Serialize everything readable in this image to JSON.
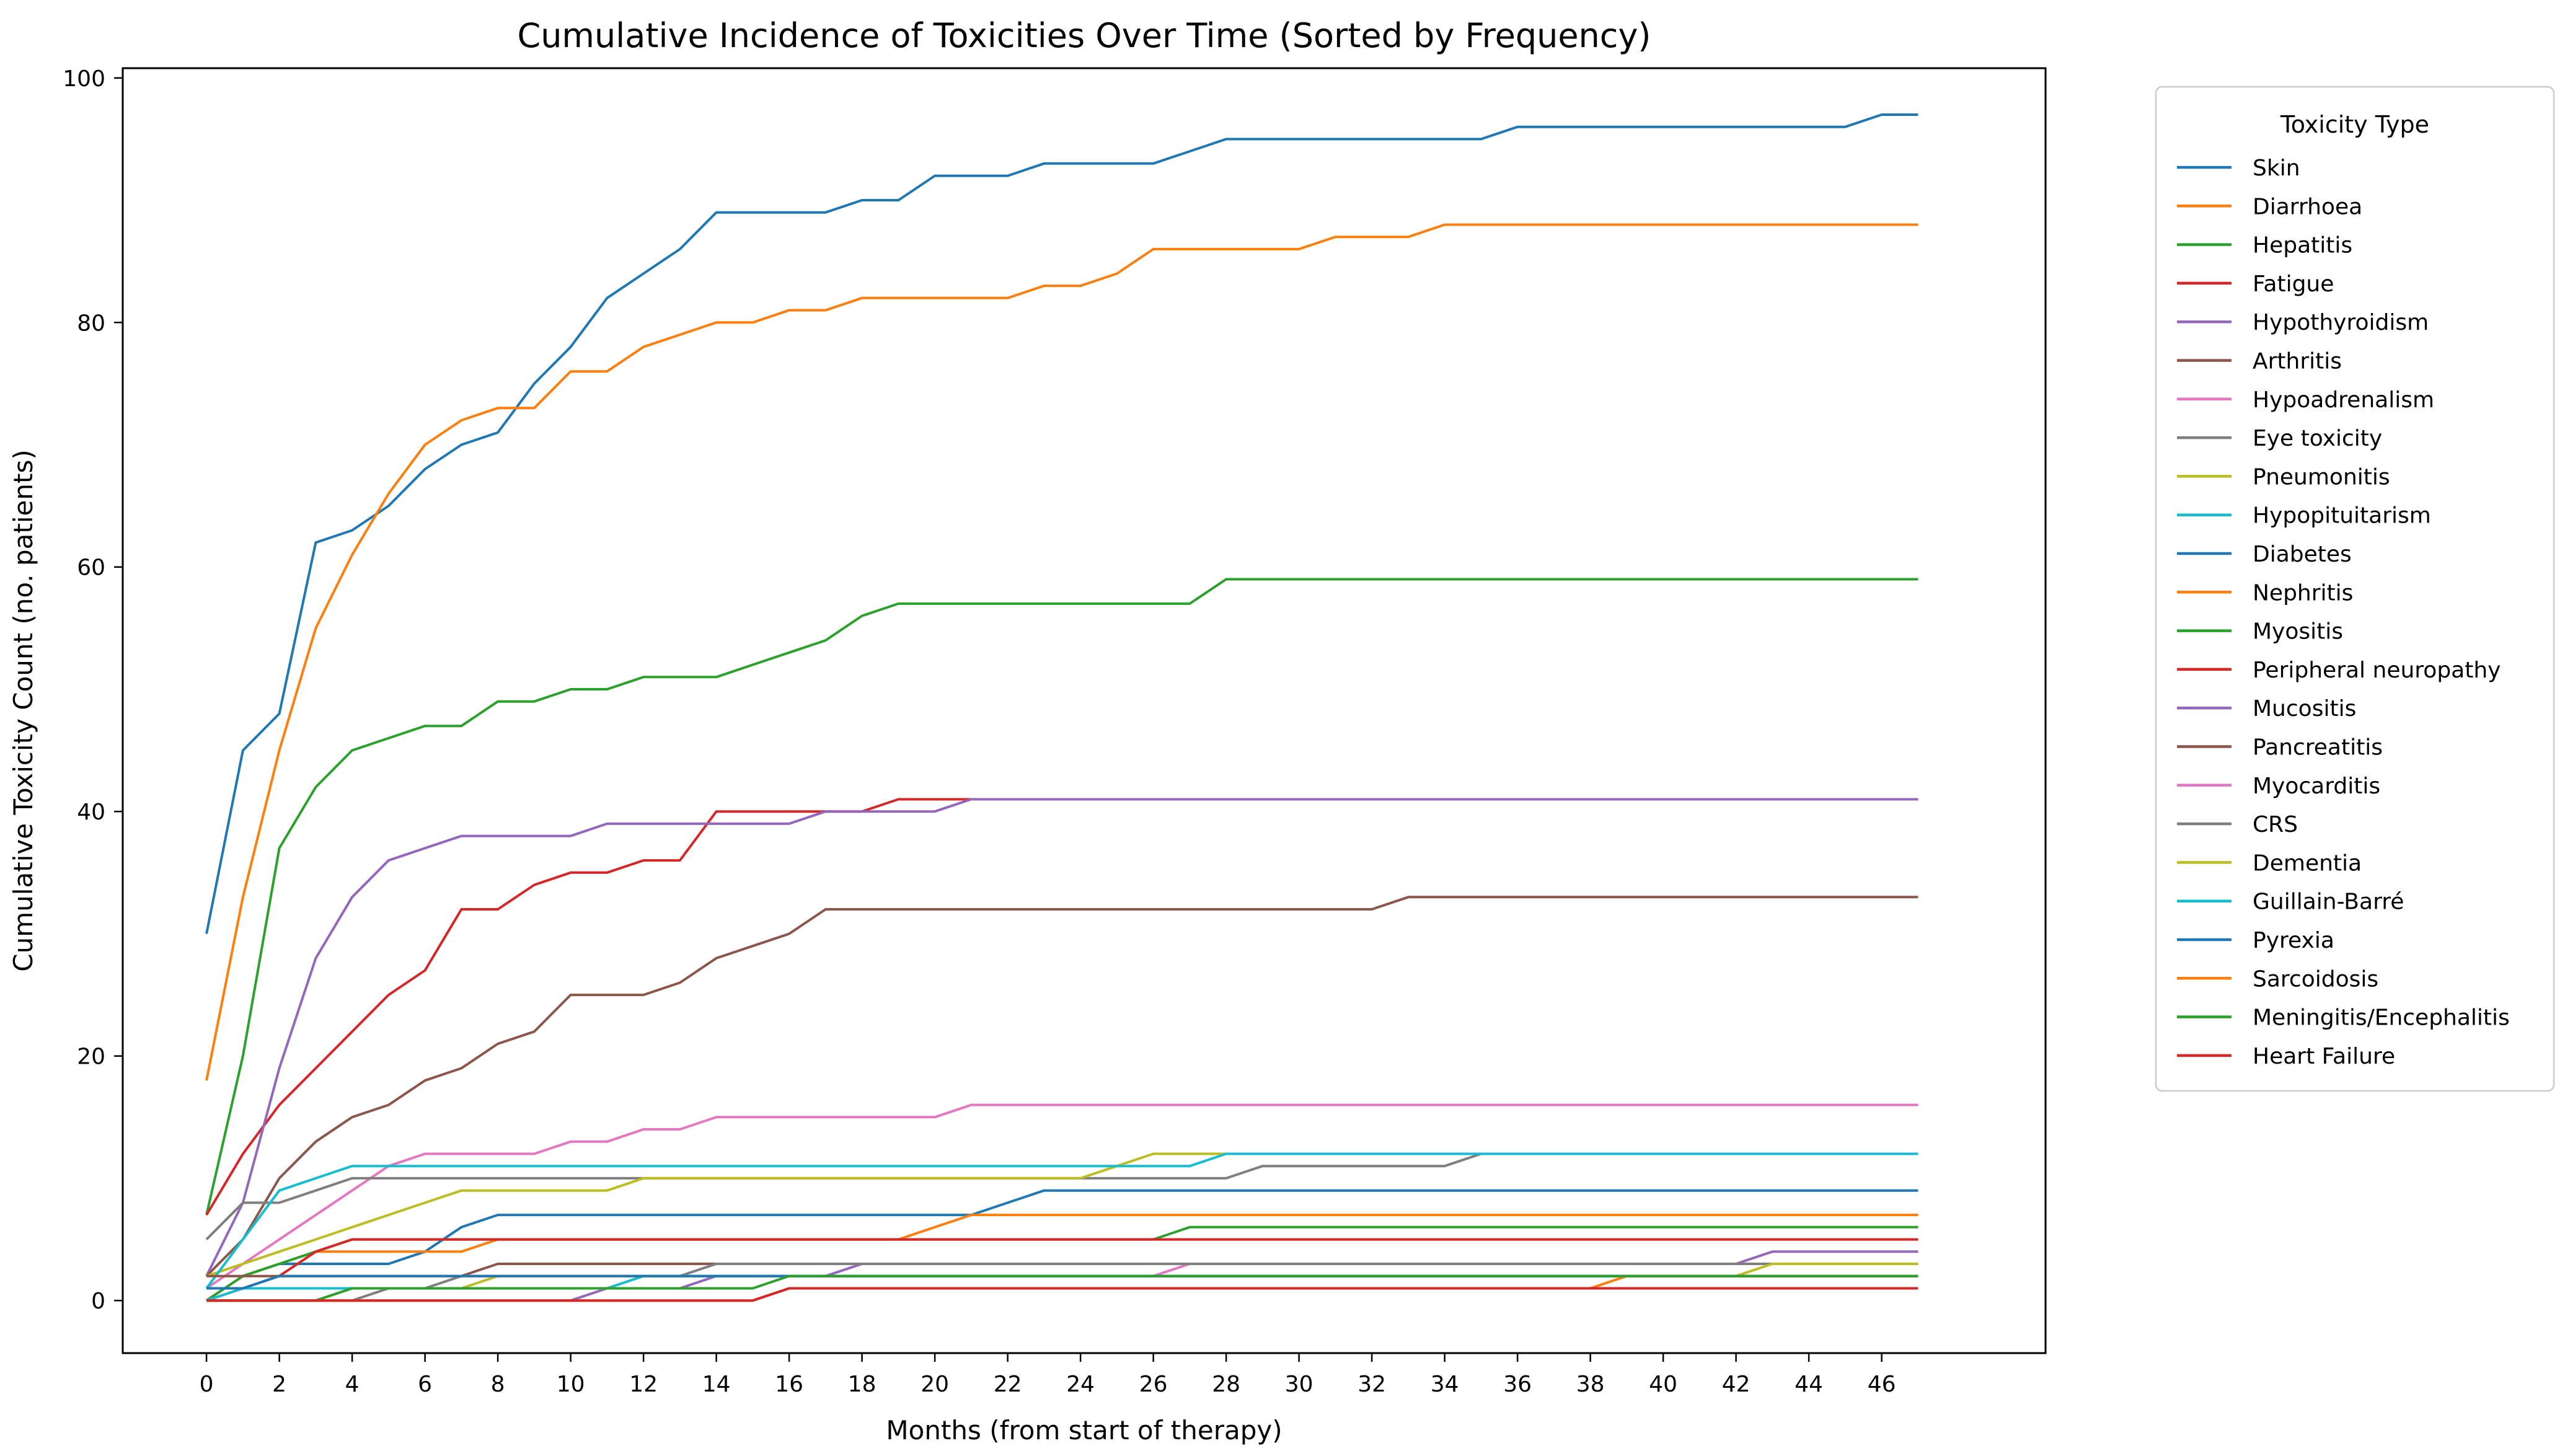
{
  "figure": {
    "background": "#ffffff",
    "frame_color": "#000000",
    "legend_border_color": "#cccccc"
  },
  "chart_data": {
    "type": "line",
    "title": "Cumulative Incidence of Toxicities Over Time (Sorted by Frequency)",
    "xlabel": "Months (from start of therapy)",
    "ylabel": "Cumulative Toxicity Count (no. patients)",
    "legend_title": "Toxicity Type",
    "legend_position": "right-outside",
    "grid": false,
    "xlim": [
      -2.3,
      50.5
    ],
    "ylim": [
      -4.3,
      100.8
    ],
    "x_ticks": [
      0,
      2,
      4,
      6,
      8,
      10,
      12,
      14,
      16,
      18,
      20,
      22,
      24,
      26,
      28,
      30,
      32,
      34,
      36,
      38,
      40,
      42,
      44,
      46
    ],
    "y_ticks": [
      0,
      20,
      40,
      60,
      80,
      100
    ],
    "x": [
      0,
      1,
      2,
      3,
      4,
      5,
      6,
      7,
      8,
      9,
      10,
      11,
      12,
      13,
      14,
      15,
      16,
      17,
      18,
      19,
      20,
      21,
      22,
      23,
      24,
      25,
      26,
      27,
      28,
      29,
      30,
      31,
      32,
      33,
      34,
      35,
      36,
      37,
      38,
      39,
      40,
      41,
      42,
      43,
      44,
      45,
      46,
      47
    ],
    "series": [
      {
        "name": "Skin",
        "color": "#1f77b4",
        "values": [
          30,
          45,
          48,
          62,
          63,
          65,
          68,
          70,
          71,
          75,
          78,
          82,
          84,
          86,
          89,
          89,
          89,
          89,
          90,
          90,
          92,
          92,
          92,
          93,
          93,
          93,
          93,
          94,
          95,
          95,
          95,
          95,
          95,
          95,
          95,
          95,
          96,
          96,
          96,
          96,
          96,
          96,
          96,
          96,
          96,
          96,
          97,
          97
        ]
      },
      {
        "name": "Diarrhoea",
        "color": "#ff7f0e",
        "values": [
          18,
          33,
          45,
          55,
          61,
          66,
          70,
          72,
          73,
          73,
          76,
          76,
          78,
          79,
          80,
          80,
          81,
          81,
          82,
          82,
          82,
          82,
          82,
          83,
          83,
          84,
          86,
          86,
          86,
          86,
          86,
          87,
          87,
          87,
          88,
          88,
          88,
          88,
          88,
          88,
          88,
          88,
          88,
          88,
          88,
          88,
          88,
          88
        ]
      },
      {
        "name": "Hepatitis",
        "color": "#2ca02c",
        "values": [
          7,
          20,
          37,
          42,
          45,
          46,
          47,
          47,
          49,
          49,
          50,
          50,
          51,
          51,
          51,
          52,
          53,
          54,
          56,
          57,
          57,
          57,
          57,
          57,
          57,
          57,
          57,
          57,
          59,
          59,
          59,
          59,
          59,
          59,
          59,
          59,
          59,
          59,
          59,
          59,
          59,
          59,
          59,
          59,
          59,
          59,
          59,
          59
        ]
      },
      {
        "name": "Fatigue",
        "color": "#d62728",
        "values": [
          7,
          12,
          16,
          19,
          22,
          25,
          27,
          32,
          32,
          34,
          35,
          35,
          36,
          36,
          40,
          40,
          40,
          40,
          40,
          41,
          41,
          41,
          41,
          41,
          41,
          41,
          41,
          41,
          41,
          41,
          41,
          41,
          41,
          41,
          41,
          41,
          41,
          41,
          41,
          41,
          41,
          41,
          41,
          41,
          41,
          41,
          41,
          41
        ]
      },
      {
        "name": "Hypothyroidism",
        "color": "#9467bd",
        "values": [
          2,
          8,
          19,
          28,
          33,
          36,
          37,
          38,
          38,
          38,
          38,
          39,
          39,
          39,
          39,
          39,
          39,
          40,
          40,
          40,
          40,
          41,
          41,
          41,
          41,
          41,
          41,
          41,
          41,
          41,
          41,
          41,
          41,
          41,
          41,
          41,
          41,
          41,
          41,
          41,
          41,
          41,
          41,
          41,
          41,
          41,
          41,
          41
        ]
      },
      {
        "name": "Arthritis",
        "color": "#8c564b",
        "values": [
          2,
          5,
          10,
          13,
          15,
          16,
          18,
          19,
          21,
          22,
          25,
          25,
          25,
          26,
          28,
          29,
          30,
          32,
          32,
          32,
          32,
          32,
          32,
          32,
          32,
          32,
          32,
          32,
          32,
          32,
          32,
          32,
          32,
          33,
          33,
          33,
          33,
          33,
          33,
          33,
          33,
          33,
          33,
          33,
          33,
          33,
          33,
          33
        ]
      },
      {
        "name": "Hypoadrenalism",
        "color": "#e377c2",
        "values": [
          1,
          3,
          5,
          7,
          9,
          11,
          12,
          12,
          12,
          12,
          13,
          13,
          14,
          14,
          15,
          15,
          15,
          15,
          15,
          15,
          15,
          16,
          16,
          16,
          16,
          16,
          16,
          16,
          16,
          16,
          16,
          16,
          16,
          16,
          16,
          16,
          16,
          16,
          16,
          16,
          16,
          16,
          16,
          16,
          16,
          16,
          16,
          16
        ]
      },
      {
        "name": "Eye toxicity",
        "color": "#7f7f7f",
        "values": [
          5,
          8,
          8,
          9,
          10,
          10,
          10,
          10,
          10,
          10,
          10,
          10,
          10,
          10,
          10,
          10,
          10,
          10,
          10,
          10,
          10,
          10,
          10,
          10,
          10,
          10,
          10,
          10,
          10,
          11,
          11,
          11,
          11,
          11,
          11,
          12,
          12,
          12,
          12,
          12,
          12,
          12,
          12,
          12,
          12,
          12,
          12,
          12
        ]
      },
      {
        "name": "Pneumonitis",
        "color": "#bcbd22",
        "values": [
          2,
          3,
          4,
          5,
          6,
          7,
          8,
          9,
          9,
          9,
          9,
          9,
          10,
          10,
          10,
          10,
          10,
          10,
          10,
          10,
          10,
          10,
          10,
          10,
          10,
          11,
          12,
          12,
          12,
          12,
          12,
          12,
          12,
          12,
          12,
          12,
          12,
          12,
          12,
          12,
          12,
          12,
          12,
          12,
          12,
          12,
          12,
          12
        ]
      },
      {
        "name": "Hypopituitarism",
        "color": "#17becf",
        "values": [
          1,
          5,
          9,
          10,
          11,
          11,
          11,
          11,
          11,
          11,
          11,
          11,
          11,
          11,
          11,
          11,
          11,
          11,
          11,
          11,
          11,
          11,
          11,
          11,
          11,
          11,
          11,
          11,
          12,
          12,
          12,
          12,
          12,
          12,
          12,
          12,
          12,
          12,
          12,
          12,
          12,
          12,
          12,
          12,
          12,
          12,
          12,
          12
        ]
      },
      {
        "name": "Diabetes",
        "color": "#1f77b4",
        "values": [
          0,
          2,
          3,
          3,
          3,
          3,
          4,
          6,
          7,
          7,
          7,
          7,
          7,
          7,
          7,
          7,
          7,
          7,
          7,
          7,
          7,
          7,
          8,
          9,
          9,
          9,
          9,
          9,
          9,
          9,
          9,
          9,
          9,
          9,
          9,
          9,
          9,
          9,
          9,
          9,
          9,
          9,
          9,
          9,
          9,
          9,
          9,
          9
        ]
      },
      {
        "name": "Nephritis",
        "color": "#ff7f0e",
        "values": [
          0,
          2,
          3,
          4,
          4,
          4,
          4,
          4,
          5,
          5,
          5,
          5,
          5,
          5,
          5,
          5,
          5,
          5,
          5,
          5,
          6,
          7,
          7,
          7,
          7,
          7,
          7,
          7,
          7,
          7,
          7,
          7,
          7,
          7,
          7,
          7,
          7,
          7,
          7,
          7,
          7,
          7,
          7,
          7,
          7,
          7,
          7,
          7
        ]
      },
      {
        "name": "Myositis",
        "color": "#2ca02c",
        "values": [
          0,
          2,
          3,
          4,
          5,
          5,
          5,
          5,
          5,
          5,
          5,
          5,
          5,
          5,
          5,
          5,
          5,
          5,
          5,
          5,
          5,
          5,
          5,
          5,
          5,
          5,
          5,
          6,
          6,
          6,
          6,
          6,
          6,
          6,
          6,
          6,
          6,
          6,
          6,
          6,
          6,
          6,
          6,
          6,
          6,
          6,
          6,
          6
        ]
      },
      {
        "name": "Peripheral neuropathy",
        "color": "#d62728",
        "values": [
          0,
          1,
          2,
          4,
          5,
          5,
          5,
          5,
          5,
          5,
          5,
          5,
          5,
          5,
          5,
          5,
          5,
          5,
          5,
          5,
          5,
          5,
          5,
          5,
          5,
          5,
          5,
          5,
          5,
          5,
          5,
          5,
          5,
          5,
          5,
          5,
          5,
          5,
          5,
          5,
          5,
          5,
          5,
          5,
          5,
          5,
          5,
          5
        ]
      },
      {
        "name": "Mucositis",
        "color": "#9467bd",
        "values": [
          0,
          0,
          0,
          0,
          0,
          0,
          0,
          0,
          0,
          0,
          0,
          1,
          1,
          1,
          2,
          2,
          2,
          2,
          3,
          3,
          3,
          3,
          3,
          3,
          3,
          3,
          3,
          3,
          3,
          3,
          3,
          3,
          3,
          3,
          3,
          3,
          3,
          3,
          3,
          3,
          3,
          3,
          3,
          4,
          4,
          4,
          4,
          4
        ]
      },
      {
        "name": "Pancreatitis",
        "color": "#8c564b",
        "values": [
          2,
          2,
          2,
          2,
          2,
          2,
          2,
          2,
          3,
          3,
          3,
          3,
          3,
          3,
          3,
          3,
          3,
          3,
          3,
          3,
          3,
          3,
          3,
          3,
          3,
          3,
          3,
          3,
          3,
          3,
          3,
          3,
          3,
          3,
          3,
          3,
          3,
          3,
          3,
          3,
          3,
          3,
          3,
          3,
          3,
          3,
          3,
          3
        ]
      },
      {
        "name": "Myocarditis",
        "color": "#e377c2",
        "values": [
          0,
          1,
          1,
          1,
          1,
          1,
          1,
          1,
          1,
          1,
          1,
          1,
          2,
          2,
          2,
          2,
          2,
          2,
          2,
          2,
          2,
          2,
          2,
          2,
          2,
          2,
          2,
          3,
          3,
          3,
          3,
          3,
          3,
          3,
          3,
          3,
          3,
          3,
          3,
          3,
          3,
          3,
          3,
          3,
          3,
          3,
          3,
          3
        ]
      },
      {
        "name": "CRS",
        "color": "#7f7f7f",
        "values": [
          0,
          0,
          0,
          0,
          0,
          1,
          1,
          2,
          2,
          2,
          2,
          2,
          2,
          2,
          3,
          3,
          3,
          3,
          3,
          3,
          3,
          3,
          3,
          3,
          3,
          3,
          3,
          3,
          3,
          3,
          3,
          3,
          3,
          3,
          3,
          3,
          3,
          3,
          3,
          3,
          3,
          3,
          3,
          3,
          3,
          3,
          3,
          3
        ]
      },
      {
        "name": "Dementia",
        "color": "#bcbd22",
        "values": [
          0,
          0,
          0,
          0,
          1,
          1,
          1,
          1,
          2,
          2,
          2,
          2,
          2,
          2,
          2,
          2,
          2,
          2,
          2,
          2,
          2,
          2,
          2,
          2,
          2,
          2,
          2,
          2,
          2,
          2,
          2,
          2,
          2,
          2,
          2,
          2,
          2,
          2,
          2,
          2,
          2,
          2,
          2,
          3,
          3,
          3,
          3,
          3
        ]
      },
      {
        "name": "Guillain-Barré",
        "color": "#17becf",
        "values": [
          0,
          1,
          1,
          1,
          1,
          1,
          1,
          1,
          1,
          1,
          1,
          1,
          2,
          2,
          2,
          2,
          2,
          2,
          2,
          2,
          2,
          2,
          2,
          2,
          2,
          2,
          2,
          2,
          2,
          2,
          2,
          2,
          2,
          2,
          2,
          2,
          2,
          2,
          2,
          2,
          2,
          2,
          2,
          2,
          2,
          2,
          2,
          2
        ]
      },
      {
        "name": "Pyrexia",
        "color": "#1f77b4",
        "values": [
          1,
          1,
          2,
          2,
          2,
          2,
          2,
          2,
          2,
          2,
          2,
          2,
          2,
          2,
          2,
          2,
          2,
          2,
          2,
          2,
          2,
          2,
          2,
          2,
          2,
          2,
          2,
          2,
          2,
          2,
          2,
          2,
          2,
          2,
          2,
          2,
          2,
          2,
          2,
          2,
          2,
          2,
          2,
          2,
          2,
          2,
          2,
          2
        ]
      },
      {
        "name": "Sarcoidosis",
        "color": "#ff7f0e",
        "values": [
          0,
          0,
          0,
          0,
          0,
          0,
          0,
          0,
          0,
          0,
          0,
          0,
          0,
          0,
          0,
          0,
          1,
          1,
          1,
          1,
          1,
          1,
          1,
          1,
          1,
          1,
          1,
          1,
          1,
          1,
          1,
          1,
          1,
          1,
          1,
          1,
          1,
          1,
          1,
          2,
          2,
          2,
          2,
          2,
          2,
          2,
          2,
          2
        ]
      },
      {
        "name": "Meningitis/Encephalitis",
        "color": "#2ca02c",
        "values": [
          0,
          0,
          0,
          0,
          1,
          1,
          1,
          1,
          1,
          1,
          1,
          1,
          1,
          1,
          1,
          1,
          2,
          2,
          2,
          2,
          2,
          2,
          2,
          2,
          2,
          2,
          2,
          2,
          2,
          2,
          2,
          2,
          2,
          2,
          2,
          2,
          2,
          2,
          2,
          2,
          2,
          2,
          2,
          2,
          2,
          2,
          2,
          2
        ]
      },
      {
        "name": "Heart Failure",
        "color": "#d62728",
        "values": [
          0,
          0,
          0,
          0,
          0,
          0,
          0,
          0,
          0,
          0,
          0,
          0,
          0,
          0,
          0,
          0,
          1,
          1,
          1,
          1,
          1,
          1,
          1,
          1,
          1,
          1,
          1,
          1,
          1,
          1,
          1,
          1,
          1,
          1,
          1,
          1,
          1,
          1,
          1,
          1,
          1,
          1,
          1,
          1,
          1,
          1,
          1,
          1
        ]
      }
    ]
  }
}
